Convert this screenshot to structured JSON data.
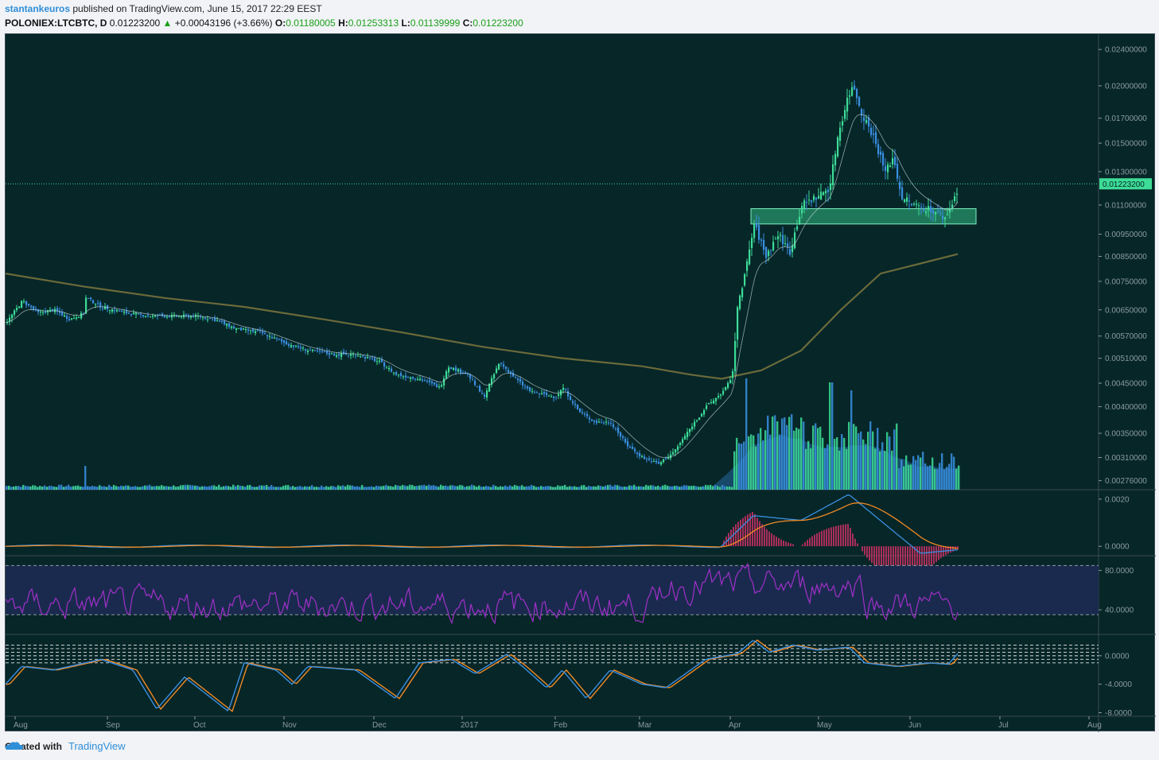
{
  "header": {
    "author": "stantankeuros",
    "published_text": "published on TradingView.com, June 15, 2017 22:29 EEST",
    "symbol": "POLONIEX:LTCBTC, D",
    "last": "0.01223200",
    "change": "+0.00043196 (+3.66%)",
    "o_label": "O:",
    "o_value": "0.01180005",
    "h_label": "H:",
    "h_value": "0.01253313",
    "l_label": "L:",
    "l_value": "0.01139999",
    "c_label": "C:",
    "c_value": "0.01223200"
  },
  "footer": {
    "created_with": "Created with",
    "brand": "TradingView"
  },
  "colors": {
    "background": "#062628",
    "candle_up": "#3ddc97",
    "candle_down": "#3a8fe0",
    "ma200": "#6b6a3a",
    "macd": "#3a8fe0",
    "signal": "#f08a24",
    "hist_down": "#e0306a",
    "rsi": "#a030c8",
    "rsi_band": "#1a2a4e",
    "price_line": "#3ddc97"
  },
  "chart_data": [
    {
      "type": "candlestick",
      "title": "",
      "x_tick_labels": [
        "Aug",
        "Sep",
        "Oct",
        "Nov",
        "Dec",
        "2017",
        "Feb",
        "Mar",
        "Apr",
        "May",
        "Jun",
        "Jul",
        "Aug"
      ],
      "y_tick_labels": [
        "0.02400000",
        "0.02000000",
        "0.01700000",
        "0.01500000",
        "0.01300000",
        "0.01100000",
        "0.00950000",
        "0.00850000",
        "0.00750000",
        "0.00650000",
        "0.00570000",
        "0.00510000",
        "0.00450000",
        "0.00400000",
        "0.00350000",
        "0.00310000",
        "0.00276000"
      ],
      "y_ticks": [
        0.024,
        0.02,
        0.017,
        0.015,
        0.013,
        0.011,
        0.0095,
        0.0085,
        0.0075,
        0.0065,
        0.0057,
        0.0051,
        0.0045,
        0.004,
        0.0035,
        0.0031,
        0.00276
      ],
      "y_scale": "log",
      "ylim": [
        0.00268,
        0.0255
      ],
      "last_price_label": "0.01223200",
      "last_price": 0.012232,
      "support_zone": [
        0.01,
        0.0108
      ],
      "monthly_close": [
        {
          "month": "Aug 2016",
          "value": 0.0066
        },
        {
          "month": "Sep 2016",
          "value": 0.0062
        },
        {
          "month": "Oct 2016",
          "value": 0.0058
        },
        {
          "month": "Nov 2016",
          "value": 0.0055
        },
        {
          "month": "Dec 2016",
          "value": 0.005
        },
        {
          "month": "Jan 2017",
          "value": 0.0047
        },
        {
          "month": "Feb 2017",
          "value": 0.0037
        },
        {
          "month": "Mar 2017",
          "value": 0.0042
        },
        {
          "month": "Apr 2017",
          "value": 0.0095
        },
        {
          "month": "May 2017",
          "value": 0.014
        },
        {
          "month": "Jun 2017",
          "value": 0.01223
        }
      ],
      "price_path": [
        [
          0,
          0.0061
        ],
        [
          20,
          0.0068
        ],
        [
          40,
          0.0064
        ],
        [
          60,
          0.0065
        ],
        [
          80,
          0.0062
        ],
        [
          98,
          0.0064
        ],
        [
          100,
          0.0069
        ],
        [
          120,
          0.0066
        ],
        [
          150,
          0.0064
        ],
        [
          180,
          0.0063
        ],
        [
          210,
          0.0063
        ],
        [
          240,
          0.0063
        ],
        [
          260,
          0.0062
        ],
        [
          290,
          0.0059
        ],
        [
          320,
          0.0058
        ],
        [
          350,
          0.0055
        ],
        [
          380,
          0.0053
        ],
        [
          410,
          0.0052
        ],
        [
          440,
          0.0052
        ],
        [
          470,
          0.005
        ],
        [
          490,
          0.0047
        ],
        [
          520,
          0.0046
        ],
        [
          545,
          0.0044
        ],
        [
          555,
          0.0049
        ],
        [
          580,
          0.0047
        ],
        [
          600,
          0.0042
        ],
        [
          620,
          0.005
        ],
        [
          640,
          0.0046
        ],
        [
          660,
          0.0043
        ],
        [
          690,
          0.0042
        ],
        [
          700,
          0.0044
        ],
        [
          720,
          0.0039
        ],
        [
          740,
          0.0037
        ],
        [
          760,
          0.0037
        ],
        [
          780,
          0.0033
        ],
        [
          800,
          0.0031
        ],
        [
          820,
          0.003
        ],
        [
          840,
          0.0032
        ],
        [
          860,
          0.0036
        ],
        [
          880,
          0.004
        ],
        [
          900,
          0.0043
        ],
        [
          912,
          0.0046
        ],
        [
          920,
          0.0068
        ],
        [
          930,
          0.008
        ],
        [
          940,
          0.01
        ],
        [
          955,
          0.0085
        ],
        [
          970,
          0.0095
        ],
        [
          985,
          0.0087
        ],
        [
          1000,
          0.011
        ],
        [
          1020,
          0.0115
        ],
        [
          1035,
          0.012
        ],
        [
          1045,
          0.0155
        ],
        [
          1058,
          0.019
        ],
        [
          1065,
          0.02
        ],
        [
          1075,
          0.0175
        ],
        [
          1090,
          0.0155
        ],
        [
          1105,
          0.013
        ],
        [
          1115,
          0.014
        ],
        [
          1125,
          0.0115
        ],
        [
          1140,
          0.011
        ],
        [
          1160,
          0.0108
        ],
        [
          1180,
          0.0103
        ],
        [
          1193,
          0.0115
        ],
        [
          1197,
          0.0122
        ]
      ],
      "ma200_path": [
        [
          0,
          0.0078
        ],
        [
          100,
          0.0073
        ],
        [
          200,
          0.0069
        ],
        [
          300,
          0.0066
        ],
        [
          400,
          0.0062
        ],
        [
          500,
          0.0058
        ],
        [
          600,
          0.0054
        ],
        [
          700,
          0.0051
        ],
        [
          800,
          0.0049
        ],
        [
          860,
          0.0047
        ],
        [
          900,
          0.0046
        ],
        [
          950,
          0.0048
        ],
        [
          1000,
          0.0053
        ],
        [
          1050,
          0.0065
        ],
        [
          1100,
          0.0078
        ],
        [
          1150,
          0.0082
        ],
        [
          1197,
          0.0086
        ]
      ]
    },
    {
      "type": "bar",
      "title": "",
      "series": [
        {
          "values_relative": "volume"
        }
      ],
      "notes": "volume histogram overlaid at bottom of price pane"
    },
    {
      "type": "line",
      "title": "",
      "y_tick_labels": [
        "0.0020",
        "0.0000"
      ],
      "ylim": [
        -0.0004,
        0.0024
      ]
    },
    {
      "type": "line",
      "title": "",
      "y_tick_labels": [
        "80.0000",
        "40.0000"
      ],
      "ylim": [
        15,
        95
      ],
      "band": [
        35,
        85
      ]
    },
    {
      "type": "line",
      "title": "",
      "y_tick_labels": [
        "0.0000",
        "-4.0000",
        "-8.0000"
      ],
      "ylim": [
        -8.5,
        3.0
      ]
    }
  ]
}
